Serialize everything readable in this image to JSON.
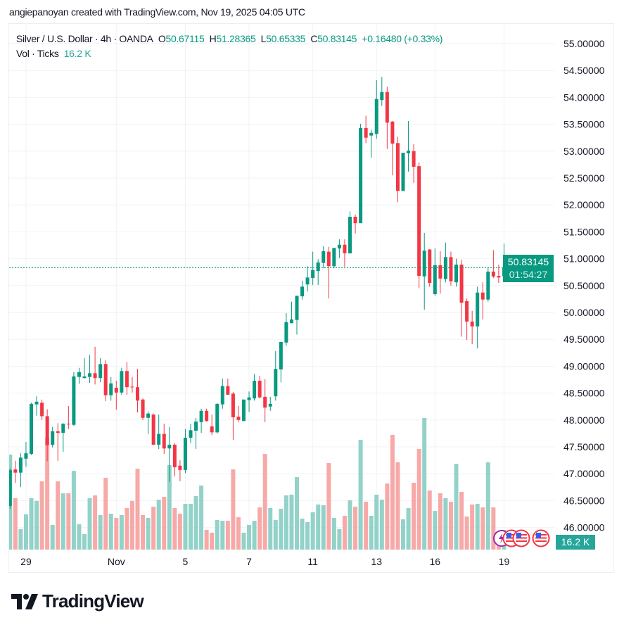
{
  "header": {
    "credit": "angiepanoyan created with TradingView.com, Nov 19, 2025 04:05 UTC"
  },
  "legend": {
    "symbol": "Silver / U.S. Dollar · 4h · OANDA",
    "o_label": "O",
    "o": "50.67115",
    "h_label": "H",
    "h": "51.28365",
    "l_label": "L",
    "l": "50.65335",
    "c_label": "C",
    "c": "50.83145",
    "change": "+0.16480 (+0.33%)",
    "vol_label": "Vol · Ticks",
    "vol": "16.2 K"
  },
  "price_label": {
    "price": "50.83145",
    "countdown": "01:54:27"
  },
  "volume_label": "16.2 K",
  "logo_text": "TradingView",
  "colors": {
    "up": "#089981",
    "down": "#F23645",
    "vol_up": "#92D2C8",
    "vol_down": "#F7A9A7",
    "grid": "#F0F2F5"
  },
  "chart_data": {
    "type": "candlestick",
    "title": "Silver / U.S. Dollar · 4h · OANDA",
    "ylim": [
      45.9,
      55.3
    ],
    "y_ticks": [
      "55.00000",
      "54.50000",
      "54.00000",
      "53.50000",
      "53.00000",
      "52.50000",
      "52.00000",
      "51.50000",
      "51.00000",
      "50.50000",
      "50.00000",
      "49.50000",
      "49.00000",
      "48.50000",
      "48.00000",
      "47.50000",
      "47.00000",
      "46.50000",
      "46.00000"
    ],
    "x_ticks": [
      {
        "label": "29",
        "index": 3
      },
      {
        "label": "Nov",
        "index": 20
      },
      {
        "label": "5",
        "index": 33
      },
      {
        "label": "7",
        "index": 45
      },
      {
        "label": "11",
        "index": 57
      },
      {
        "label": "13",
        "index": 69
      },
      {
        "label": "16",
        "index": 80
      },
      {
        "label": "19",
        "index": 93
      }
    ],
    "last_price": 50.83145,
    "ohlc": [
      [
        46.4,
        47.1,
        46.35,
        47.07
      ],
      [
        47.08,
        47.24,
        46.83,
        47.02
      ],
      [
        47.02,
        47.38,
        46.75,
        47.3
      ],
      [
        47.28,
        47.59,
        47.13,
        47.38
      ],
      [
        47.37,
        48.32,
        47.35,
        48.3
      ],
      [
        48.29,
        48.44,
        48.08,
        48.34
      ],
      [
        48.32,
        48.38,
        48.0,
        48.07
      ],
      [
        48.07,
        48.2,
        47.23,
        47.53
      ],
      [
        47.54,
        47.87,
        47.49,
        47.79
      ],
      [
        47.79,
        47.94,
        47.24,
        47.76
      ],
      [
        47.76,
        47.94,
        47.41,
        47.93
      ],
      [
        47.93,
        48.26,
        47.83,
        47.92
      ],
      [
        47.91,
        48.89,
        47.89,
        48.81
      ],
      [
        48.8,
        48.97,
        48.67,
        48.89
      ],
      [
        48.78,
        49.15,
        48.77,
        48.81
      ],
      [
        48.8,
        49.21,
        48.69,
        48.87
      ],
      [
        48.87,
        49.36,
        48.66,
        48.78
      ],
      [
        48.78,
        49.15,
        48.7,
        49.04
      ],
      [
        49.04,
        49.11,
        48.35,
        48.46
      ],
      [
        48.46,
        48.8,
        48.36,
        48.68
      ],
      [
        48.6,
        48.73,
        48.19,
        48.51
      ],
      [
        48.51,
        48.97,
        48.47,
        48.91
      ],
      [
        48.91,
        49.08,
        48.47,
        48.61
      ],
      [
        48.62,
        48.8,
        48.51,
        48.61
      ],
      [
        48.61,
        48.95,
        48.14,
        48.36
      ],
      [
        48.38,
        48.4,
        48.0,
        48.04
      ],
      [
        48.04,
        48.16,
        47.74,
        48.12
      ],
      [
        48.1,
        48.12,
        47.54,
        47.54
      ],
      [
        47.54,
        48.1,
        47.46,
        47.74
      ],
      [
        47.74,
        47.93,
        47.37,
        47.47
      ],
      [
        47.47,
        47.87,
        46.85,
        47.54
      ],
      [
        47.54,
        47.57,
        46.95,
        47.12
      ],
      [
        47.15,
        47.25,
        46.86,
        47.07
      ],
      [
        47.07,
        47.83,
        47.01,
        47.67
      ],
      [
        47.67,
        47.93,
        47.57,
        47.81
      ],
      [
        47.8,
        48.04,
        47.46,
        47.97
      ],
      [
        47.96,
        48.21,
        47.76,
        48.17
      ],
      [
        48.17,
        48.21,
        47.97,
        47.98
      ],
      [
        47.88,
        48.1,
        47.72,
        47.77
      ],
      [
        47.77,
        48.31,
        47.75,
        48.3
      ],
      [
        48.29,
        48.77,
        48.21,
        48.63
      ],
      [
        48.63,
        48.77,
        48.47,
        48.47
      ],
      [
        48.49,
        48.52,
        47.63,
        48.05
      ],
      [
        48.06,
        48.26,
        47.96,
        48.0
      ],
      [
        47.98,
        48.38,
        47.98,
        48.38
      ],
      [
        48.37,
        48.53,
        48.15,
        48.42
      ],
      [
        48.4,
        48.85,
        48.36,
        48.73
      ],
      [
        48.73,
        48.82,
        48.4,
        48.42
      ],
      [
        48.43,
        48.76,
        47.96,
        48.23
      ],
      [
        48.25,
        48.43,
        48.17,
        48.3
      ],
      [
        48.44,
        49.28,
        48.36,
        48.95
      ],
      [
        48.94,
        49.45,
        48.7,
        49.45
      ],
      [
        49.44,
        49.99,
        49.38,
        49.82
      ],
      [
        49.8,
        50.2,
        49.8,
        49.87
      ],
      [
        49.86,
        50.31,
        49.59,
        50.31
      ],
      [
        50.3,
        50.59,
        50.24,
        50.48
      ],
      [
        50.52,
        50.86,
        50.39,
        50.65
      ],
      [
        50.64,
        51.13,
        50.51,
        50.79
      ],
      [
        50.77,
        50.99,
        50.51,
        50.93
      ],
      [
        50.92,
        51.23,
        50.82,
        51.14
      ],
      [
        51.13,
        51.22,
        50.26,
        50.86
      ],
      [
        50.86,
        51.2,
        50.82,
        51.2
      ],
      [
        51.19,
        51.36,
        51.01,
        51.26
      ],
      [
        51.26,
        51.36,
        50.85,
        51.1
      ],
      [
        51.1,
        51.88,
        51.09,
        51.78
      ],
      [
        51.78,
        51.82,
        51.47,
        51.66
      ],
      [
        51.66,
        53.51,
        51.66,
        53.43
      ],
      [
        53.43,
        53.66,
        53.15,
        53.25
      ],
      [
        53.29,
        53.4,
        52.88,
        53.34
      ],
      [
        53.32,
        54.32,
        53.23,
        53.97
      ],
      [
        53.95,
        54.38,
        53.84,
        54.1
      ],
      [
        54.1,
        54.2,
        53.04,
        53.53
      ],
      [
        53.55,
        53.56,
        52.55,
        53.14
      ],
      [
        53.15,
        53.27,
        52.05,
        52.26
      ],
      [
        52.26,
        52.97,
        52.26,
        52.97
      ],
      [
        52.96,
        53.56,
        52.62,
        53.01
      ],
      [
        53.0,
        53.13,
        52.41,
        52.71
      ],
      [
        52.72,
        52.79,
        50.45,
        50.68
      ],
      [
        50.67,
        51.48,
        50.05,
        51.15
      ],
      [
        51.17,
        51.18,
        50.48,
        50.55
      ],
      [
        50.34,
        51.19,
        50.31,
        50.88
      ],
      [
        50.88,
        51.14,
        50.35,
        50.63
      ],
      [
        50.62,
        51.3,
        50.56,
        51.03
      ],
      [
        51.03,
        51.13,
        50.5,
        50.58
      ],
      [
        50.56,
        51.0,
        50.48,
        50.89
      ],
      [
        50.89,
        50.98,
        49.55,
        50.18
      ],
      [
        50.21,
        50.26,
        49.49,
        49.83
      ],
      [
        49.83,
        50.03,
        49.41,
        49.74
      ],
      [
        49.74,
        50.48,
        49.33,
        50.37
      ],
      [
        50.37,
        50.56,
        49.87,
        50.24
      ],
      [
        50.24,
        50.84,
        50.2,
        50.76
      ],
      [
        50.76,
        51.16,
        50.64,
        50.67
      ],
      [
        50.68,
        50.89,
        50.55,
        50.65
      ],
      [
        50.67115,
        51.28365,
        50.65335,
        50.83145
      ]
    ],
    "volume_k": [
      78.2,
      42.3,
      16.8,
      29.0,
      42.3,
      40.0,
      56.2,
      92.1,
      20.3,
      56.2,
      46.3,
      46.3,
      64.8,
      20.8,
      12.7,
      42.3,
      44.6,
      28.4,
      59.1,
      29.5,
      26.1,
      28.4,
      34.2,
      40.0,
      66.6,
      28.4,
      26.1,
      35.3,
      41.1,
      43.4,
      69.5,
      34.2,
      29.5,
      37.6,
      37.6,
      44.0,
      52.7,
      16.2,
      13.9,
      24.3,
      23.7,
      23.7,
      66.0,
      26.6,
      13.9,
      20.3,
      23.7,
      34.7,
      78.7,
      34.2,
      24.3,
      33.6,
      44.6,
      45.2,
      59.6,
      25.5,
      22.6,
      30.7,
      37.1,
      36.5,
      71.2,
      26.1,
      16.8,
      27.8,
      40.5,
      35.3,
      90.3,
      39.4,
      27.8,
      45.2,
      41.1,
      54.4,
      94.4,
      71.8,
      24.9,
      34.2,
      55.0,
      82.8,
      108.3,
      48.6,
      31.8,
      46.3,
      42.3,
      39.4,
      70.6,
      47.5,
      27.2,
      37.1,
      37.6,
      34.7,
      71.8,
      34.7,
      14.0,
      16.2
    ],
    "events": [
      "earnings-icon",
      "us-flag-event-icon",
      "us-flag-event-icon",
      "us-flag-event-icon"
    ]
  }
}
